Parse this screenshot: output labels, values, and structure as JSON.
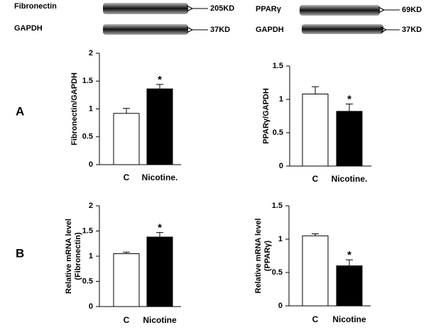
{
  "blots": [
    {
      "label": "Fibronectin",
      "size": "205KD"
    },
    {
      "label": "GAPDH",
      "size": "37KD"
    },
    {
      "label": "PPARγ",
      "size": "69KD"
    },
    {
      "label": "GAPDH",
      "size": "37KD"
    }
  ],
  "panels": [
    "A",
    "B"
  ],
  "chart_data": [
    {
      "type": "bar",
      "ylabel": "Fibronectin/GAPDH",
      "categories": [
        "C",
        "Nicotine."
      ],
      "values": [
        0.92,
        1.36
      ],
      "errors": [
        0.09,
        0.08
      ],
      "colors": [
        "#ffffff",
        "#000000"
      ],
      "annotation": "*",
      "ylim": [
        0,
        2
      ],
      "yticks": [
        0,
        0.5,
        1,
        1.5,
        2
      ]
    },
    {
      "type": "bar",
      "ylabel": "PPARγ/GAPDH",
      "categories": [
        "C",
        "Nicotine."
      ],
      "values": [
        1.08,
        0.82
      ],
      "errors": [
        0.11,
        0.11
      ],
      "colors": [
        "#ffffff",
        "#000000"
      ],
      "annotation": "*",
      "ylim": [
        0,
        1.5
      ],
      "yticks": [
        0,
        0.5,
        1,
        1.5
      ]
    },
    {
      "type": "bar",
      "ylabel": [
        "Relative mRNA level",
        "(Fibronectin)"
      ],
      "categories": [
        "C",
        "Nicotine"
      ],
      "values": [
        1.05,
        1.38
      ],
      "errors": [
        0.03,
        0.09
      ],
      "colors": [
        "#ffffff",
        "#000000"
      ],
      "annotation": "*",
      "ylim": [
        0,
        2
      ],
      "yticks": [
        0,
        0.5,
        1,
        1.5,
        2
      ]
    },
    {
      "type": "bar",
      "ylabel": [
        "Relative mRNA level",
        "(PPARγ)"
      ],
      "categories": [
        "C",
        "Nicotine"
      ],
      "values": [
        1.05,
        0.6
      ],
      "errors": [
        0.03,
        0.09
      ],
      "colors": [
        "#ffffff",
        "#000000"
      ],
      "annotation": "*",
      "ylim": [
        0,
        1.5
      ],
      "yticks": [
        0,
        0.5,
        1,
        1.5
      ]
    }
  ]
}
